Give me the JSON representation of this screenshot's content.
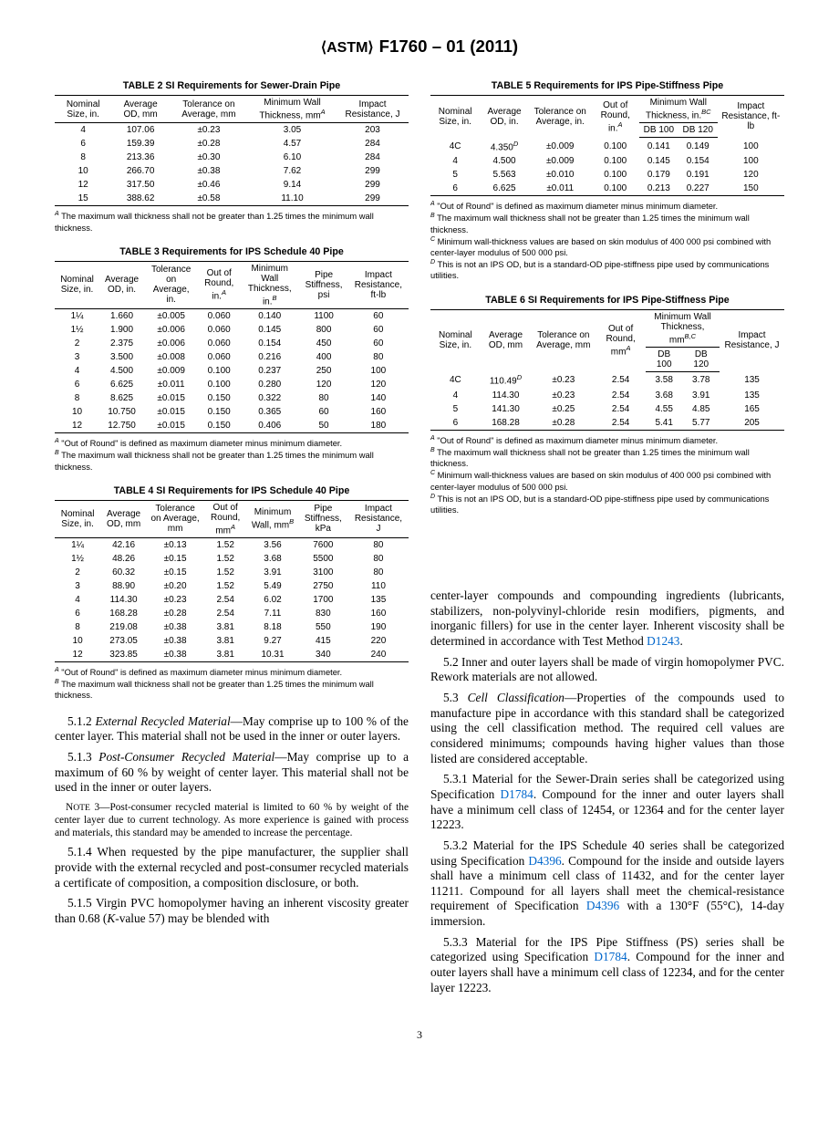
{
  "header": {
    "code": "F1760 – 01 (2011)"
  },
  "table2": {
    "caption": "TABLE 2 SI Requirements for Sewer-Drain Pipe",
    "columns": [
      "Nominal Size, in.",
      "Average OD, mm",
      "Tolerance on Average, mm",
      "Minimum Wall Thickness, mm",
      "Impact Resistance, J"
    ],
    "rows": [
      [
        "4",
        "107.06",
        "±0.23",
        "3.05",
        "203"
      ],
      [
        "6",
        "159.39",
        "±0.28",
        "4.57",
        "284"
      ],
      [
        "8",
        "213.36",
        "±0.30",
        "6.10",
        "284"
      ],
      [
        "10",
        "266.70",
        "±0.38",
        "7.62",
        "299"
      ],
      [
        "12",
        "317.50",
        "±0.46",
        "9.14",
        "299"
      ],
      [
        "15",
        "388.62",
        "±0.58",
        "11.10",
        "299"
      ]
    ],
    "footnote": "The maximum wall thickness shall not be greater than 1.25 times the minimum wall thickness."
  },
  "table3": {
    "caption": "TABLE 3 Requirements for IPS Schedule 40 Pipe",
    "columns": [
      "Nominal Size, in.",
      "Average OD, in.",
      "Tolerance on Average, in.",
      "Out of Round, in.",
      "Minimum Wall Thickness, in.",
      "Pipe Stiffness, psi",
      "Impact Resistance, ft-lb"
    ],
    "rows": [
      [
        "1¼",
        "1.660",
        "±0.005",
        "0.060",
        "0.140",
        "1100",
        "60"
      ],
      [
        "1½",
        "1.900",
        "±0.006",
        "0.060",
        "0.145",
        "800",
        "60"
      ],
      [
        "2",
        "2.375",
        "±0.006",
        "0.060",
        "0.154",
        "450",
        "60"
      ],
      [
        "3",
        "3.500",
        "±0.008",
        "0.060",
        "0.216",
        "400",
        "80"
      ],
      [
        "4",
        "4.500",
        "±0.009",
        "0.100",
        "0.237",
        "250",
        "100"
      ],
      [
        "6",
        "6.625",
        "±0.011",
        "0.100",
        "0.280",
        "120",
        "120"
      ],
      [
        "8",
        "8.625",
        "±0.015",
        "0.150",
        "0.322",
        "80",
        "140"
      ],
      [
        "10",
        "10.750",
        "±0.015",
        "0.150",
        "0.365",
        "60",
        "160"
      ],
      [
        "12",
        "12.750",
        "±0.015",
        "0.150",
        "0.406",
        "50",
        "180"
      ]
    ],
    "fnA": "\"Out of Round\" is defined as maximum diameter minus minimum diameter.",
    "fnB": "The maximum wall thickness shall not be greater than 1.25 times the minimum wall thickness."
  },
  "table4": {
    "caption": "TABLE 4 SI Requirements for IPS Schedule 40 Pipe",
    "columns": [
      "Nominal Size, in.",
      "Average OD, mm",
      "Tolerance on Average, mm",
      "Out of Round, mm",
      "Minimum Wall, mm",
      "Pipe Stiffness, kPa",
      "Impact Resistance, J"
    ],
    "rows": [
      [
        "1¼",
        "42.16",
        "±0.13",
        "1.52",
        "3.56",
        "7600",
        "80"
      ],
      [
        "1½",
        "48.26",
        "±0.15",
        "1.52",
        "3.68",
        "5500",
        "80"
      ],
      [
        "2",
        "60.32",
        "±0.15",
        "1.52",
        "3.91",
        "3100",
        "80"
      ],
      [
        "3",
        "88.90",
        "±0.20",
        "1.52",
        "5.49",
        "2750",
        "110"
      ],
      [
        "4",
        "114.30",
        "±0.23",
        "2.54",
        "6.02",
        "1700",
        "135"
      ],
      [
        "6",
        "168.28",
        "±0.28",
        "2.54",
        "7.11",
        "830",
        "160"
      ],
      [
        "8",
        "219.08",
        "±0.38",
        "3.81",
        "8.18",
        "550",
        "190"
      ],
      [
        "10",
        "273.05",
        "±0.38",
        "3.81",
        "9.27",
        "415",
        "220"
      ],
      [
        "12",
        "323.85",
        "±0.38",
        "3.81",
        "10.31",
        "340",
        "240"
      ]
    ],
    "fnA": "\"Out of Round\" is defined as maximum diameter minus minimum diameter.",
    "fnB": "The maximum wall thickness shall not be greater than 1.25 times the minimum wall thickness."
  },
  "table5": {
    "caption": "TABLE 5 Requirements for IPS Pipe-Stiffness Pipe",
    "rows": [
      [
        "4C",
        "4.350",
        "±0.009",
        "0.100",
        "0.141",
        "0.149",
        "100"
      ],
      [
        "4",
        "4.500",
        "±0.009",
        "0.100",
        "0.145",
        "0.154",
        "100"
      ],
      [
        "5",
        "5.563",
        "±0.010",
        "0.100",
        "0.179",
        "0.191",
        "120"
      ],
      [
        "6",
        "6.625",
        "±0.011",
        "0.100",
        "0.213",
        "0.227",
        "150"
      ]
    ],
    "fnA": "\"Out of Round\" is defined as maximum diameter minus minimum diameter.",
    "fnB": "The maximum wall thickness shall not be greater than 1.25 times the minimum wall thickness.",
    "fnC": "Minimum wall-thickness values are based on skin modulus of 400 000 psi combined with center-layer modulus of 500 000 psi.",
    "fnD": "This is not an IPS OD, but is a standard-OD pipe-stiffness pipe used by communications utilities."
  },
  "table6": {
    "caption": "TABLE 6 SI Requirements for IPS Pipe-Stiffness Pipe",
    "rows": [
      [
        "4C",
        "110.49",
        "±0.23",
        "2.54",
        "3.58",
        "3.78",
        "135"
      ],
      [
        "4",
        "114.30",
        "±0.23",
        "2.54",
        "3.68",
        "3.91",
        "135"
      ],
      [
        "5",
        "141.30",
        "±0.25",
        "2.54",
        "4.55",
        "4.85",
        "165"
      ],
      [
        "6",
        "168.28",
        "±0.28",
        "2.54",
        "5.41",
        "5.77",
        "205"
      ]
    ],
    "fnA": "\"Out of Round\" is defined as maximum diameter minus minimum diameter.",
    "fnB": "The maximum wall thickness shall not be greater than 1.25 times the minimum wall thickness.",
    "fnC": "Minimum wall-thickness values are based on skin modulus of 400 000 psi combined with center-layer modulus of 500 000 psi.",
    "fnD": "This is not an IPS OD, but is a standard-OD pipe-stiffness pipe used by communications utilities."
  },
  "paras": {
    "p512": "5.1.2 External Recycled Material—May comprise up to 100 % of the center layer. This material shall not be used in the inner or outer layers.",
    "p513": "5.1.3 Post-Consumer Recycled Material—May comprise up to a maximum of 60 % by weight of center layer. This material shall not be used in the inner or outer layers.",
    "note3": "NOTE 3—Post-consumer recycled material is limited to 60 % by weight of the center layer due to current technology. As more experience is gained with process and materials, this standard may be amended to increase the percentage.",
    "p514": "5.1.4 When requested by the pipe manufacturer, the supplier shall provide with the external recycled and post-consumer recycled materials a certificate of composition, a composition disclosure, or both.",
    "p515a": "5.1.5 Virgin PVC homopolymer having an inherent viscosity greater than 0.68 (K-value 57) may be blended with",
    "p515b": "center-layer compounds and compounding ingredients (lubricants, stabilizers, non-polyvinyl-chloride resin modifiers, pigments, and inorganic fillers) for use in the center layer. Inherent viscosity shall be determined in accordance with Test Method ",
    "p52": "5.2 Inner and outer layers shall be made of virgin homopolymer PVC. Rework materials are not allowed.",
    "p53": "5.3 Cell Classification—Properties of the compounds used to manufacture pipe in accordance with this standard shall be categorized using the cell classification method. The required cell values are considered minimums; compounds having higher values than those listed are considered acceptable.",
    "p531a": "5.3.1 Material for the Sewer-Drain series shall be categorized using Specification ",
    "p531b": ". Compound for the inner and outer layers shall have a minimum cell class of 12454, or 12364 and for the center layer 12223.",
    "p532a": "5.3.2 Material for the IPS Schedule 40 series shall be categorized using Specification ",
    "p532b": ". Compound for the inside and outside layers shall have a minimum cell class of 11432, and for the center layer 11211. Compound for all layers shall meet the chemical-resistance requirement of Specification ",
    "p532c": " with a 130°F (55°C), 14-day immersion.",
    "p533a": "5.3.3 Material for the IPS Pipe Stiffness (PS) series shall be categorized using Specification ",
    "p533b": ". Compound for the inner and outer layers shall have a minimum cell class of 12234, and for the center layer 12223."
  },
  "links": {
    "d1243": "D1243",
    "d1784": "D1784",
    "d4396": "D4396"
  },
  "pagenum": "3"
}
